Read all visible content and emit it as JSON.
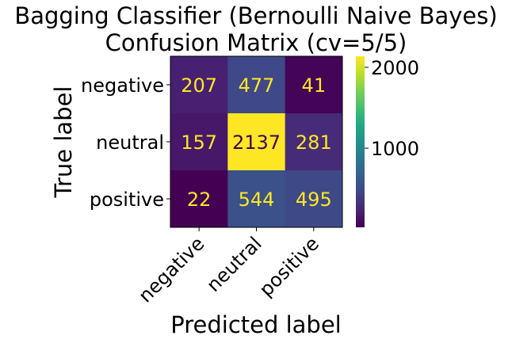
{
  "chart_data": {
    "type": "heatmap",
    "title_lines": [
      "Bagging Classifier (Bernoulli Naive Bayes)",
      "Confusion Matrix (cv=5/5)"
    ],
    "xlabel": "Predicted label",
    "ylabel": "True label",
    "row_labels": [
      "negative",
      "neutral",
      "positive"
    ],
    "col_labels": [
      "negative",
      "neutral",
      "positive"
    ],
    "values": [
      [
        207,
        477,
        41
      ],
      [
        157,
        2137,
        281
      ],
      [
        22,
        544,
        495
      ]
    ],
    "colormap": "viridis",
    "color_range": [
      22,
      2137
    ],
    "colorbar_ticks": [
      1000,
      2000
    ],
    "text_colors": {
      "on_dark": "#fde725",
      "on_light": "#440154"
    }
  }
}
